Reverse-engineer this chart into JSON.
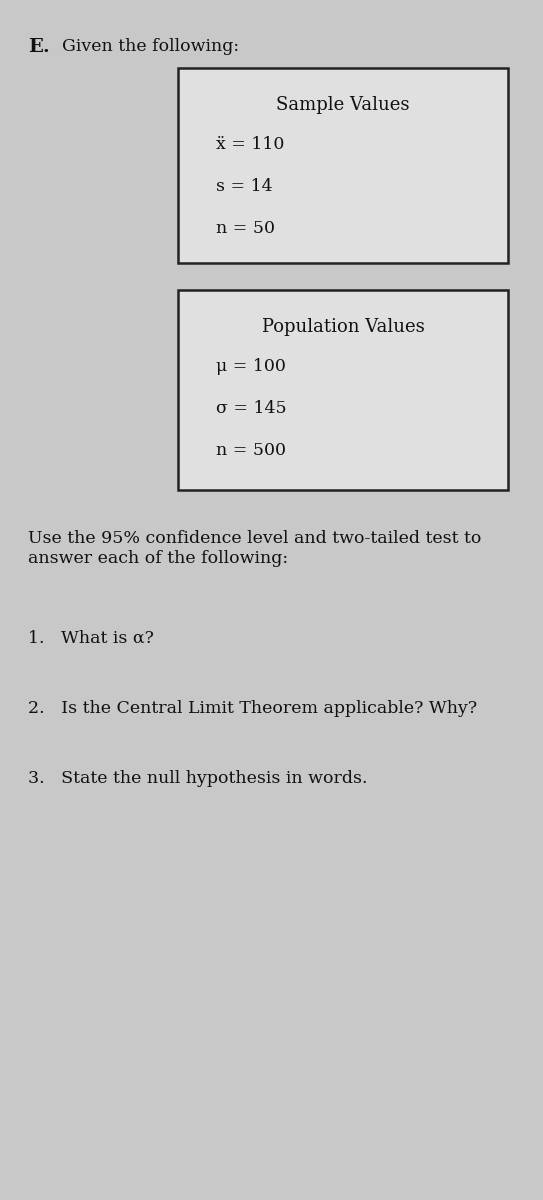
{
  "letter": "E.",
  "intro": "Given the following:",
  "sample_title": "Sample Values",
  "sample_lines": [
    "ẍ = 110",
    "s = 14",
    "n = 50"
  ],
  "pop_title": "Population Values",
  "pop_lines": [
    "μ = 100",
    "σ = 145",
    "n = 500"
  ],
  "instruction": "Use the 95% confidence level and two-tailed test to answer each of the following:",
  "q1": "1.   What is α?",
  "q2": "2.   Is the Central Limit Theorem applicable? Why?",
  "q3": "3.   State the null hypothesis in words.",
  "bg_color": "#c8c8c8",
  "box_bg": "#e0e0e0",
  "box_edge": "#222222",
  "text_color": "#111111",
  "font_size_main": 12.5,
  "font_size_title": 13,
  "font_size_letter": 13,
  "font_size_bold": 14
}
